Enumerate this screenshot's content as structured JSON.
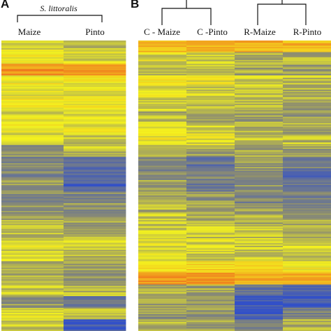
{
  "panel_a": {
    "label": "A",
    "group_label": "S. littoralis",
    "columns": [
      "Maize",
      "Pinto"
    ]
  },
  "panel_b": {
    "label": "B",
    "columns": [
      "C - Maize",
      "C -Pinto",
      "R-Maize",
      "R-Pinto"
    ]
  },
  "colors": {
    "high": "#f07a1e",
    "mid": "#f4f21e",
    "low": "#3250c8",
    "grey": "#8e8e70"
  },
  "chart_data": [
    {
      "type": "heatmap",
      "title": "",
      "panel": "A",
      "columns": [
        "Maize",
        "Pinto"
      ],
      "dendrogram": "single cluster over both columns",
      "color_scale": [
        "#3250c8",
        "#8e8e70",
        "#f4f21e",
        "#f07a1e"
      ],
      "description_values": "approximate expression levels per row band (0 = blue/low, 0.5 = yellow, 1 = orange/high)",
      "rows_pct": [
        0,
        4,
        8,
        12,
        16,
        20,
        24,
        28,
        32,
        36,
        40,
        44,
        48,
        52,
        56,
        60,
        64,
        68,
        72,
        76,
        80,
        84,
        88,
        92,
        96,
        100
      ],
      "values": [
        [
          0.55,
          0.62,
          0.9,
          0.6,
          0.58,
          0.62,
          0.55,
          0.6,
          0.5,
          0.35,
          0.3,
          0.3,
          0.38,
          0.32,
          0.38,
          0.45,
          0.48,
          0.55,
          0.5,
          0.38,
          0.42,
          0.5,
          0.35,
          0.55,
          0.5
        ],
        [
          0.5,
          0.55,
          0.92,
          0.6,
          0.55,
          0.6,
          0.55,
          0.58,
          0.5,
          0.48,
          0.2,
          0.2,
          0.08,
          0.3,
          0.35,
          0.4,
          0.45,
          0.52,
          0.45,
          0.4,
          0.38,
          0.45,
          0.2,
          0.5,
          0.05
        ]
      ]
    },
    {
      "type": "heatmap",
      "title": "",
      "panel": "B",
      "columns": [
        "C - Maize",
        "C -Pinto",
        "R-Maize",
        "R-Pinto"
      ],
      "dendrogram": "two clusters: (C - Maize, C -Pinto) and (R-Maize, R-Pinto)",
      "color_scale": [
        "#3250c8",
        "#8e8e70",
        "#f4f21e",
        "#f07a1e"
      ],
      "values": [
        [
          0.8,
          0.55,
          0.5,
          0.6,
          0.55,
          0.5,
          0.45,
          0.55,
          0.6,
          0.5,
          0.35,
          0.3,
          0.4,
          0.38,
          0.45,
          0.5,
          0.52,
          0.58,
          0.55,
          0.7,
          0.9,
          0.45,
          0.4,
          0.35,
          0.45
        ],
        [
          0.8,
          0.5,
          0.48,
          0.58,
          0.52,
          0.5,
          0.42,
          0.5,
          0.55,
          0.4,
          0.2,
          0.3,
          0.25,
          0.35,
          0.4,
          0.45,
          0.5,
          0.55,
          0.52,
          0.68,
          0.88,
          0.42,
          0.35,
          0.35,
          0.4
        ],
        [
          0.82,
          0.45,
          0.4,
          0.5,
          0.48,
          0.45,
          0.4,
          0.45,
          0.5,
          0.42,
          0.35,
          0.3,
          0.35,
          0.3,
          0.38,
          0.42,
          0.48,
          0.52,
          0.5,
          0.65,
          0.85,
          0.2,
          0.05,
          0.1,
          0.3
        ],
        [
          0.8,
          0.42,
          0.4,
          0.48,
          0.45,
          0.4,
          0.38,
          0.42,
          0.48,
          0.38,
          0.28,
          0.15,
          0.22,
          0.25,
          0.32,
          0.4,
          0.45,
          0.5,
          0.48,
          0.62,
          0.82,
          0.15,
          0.05,
          0.3,
          0.45
        ]
      ]
    }
  ]
}
